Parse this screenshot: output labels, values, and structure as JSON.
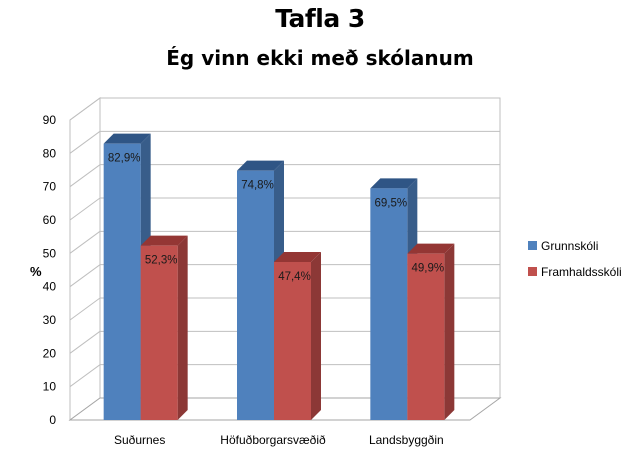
{
  "page_title": "Tafla 3",
  "chart_data": {
    "type": "bar",
    "title": "Ég vinn ekki með skólanum",
    "xlabel": "",
    "ylabel": "%",
    "ylim": [
      0,
      90
    ],
    "yticks": [
      0,
      10,
      20,
      30,
      40,
      50,
      60,
      70,
      80,
      90
    ],
    "categories": [
      "Suðurnes",
      "Höfuðborgarsvæðið",
      "Landsbyggðin"
    ],
    "series": [
      {
        "name": "Grunnskóli",
        "values": [
          82.9,
          74.8,
          69.5
        ],
        "labels": [
          "82,9%",
          "74,8%",
          "69,5%"
        ],
        "color": "#4f81bd",
        "side_color": "#385d8a",
        "top_color": "#2f5585"
      },
      {
        "name": "Framhaldsskóli",
        "values": [
          52.3,
          47.4,
          49.9
        ],
        "labels": [
          "52,3%",
          "47,4%",
          "49,9%"
        ],
        "color": "#c0504d",
        "side_color": "#8c3836",
        "top_color": "#943634"
      }
    ],
    "grid": true,
    "style": "3d",
    "legend_position": "right"
  }
}
